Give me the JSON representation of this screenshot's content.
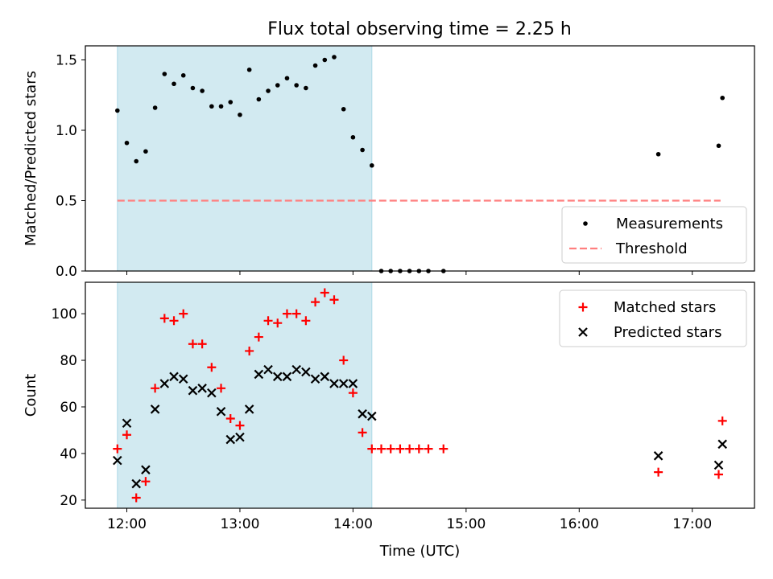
{
  "title": "Flux total observing time = 2.25 h",
  "chart_data": [
    {
      "type": "scatter",
      "name": "ratio-panel",
      "ylabel": "Matched/Predicted stars",
      "xlabel": "",
      "xlim": [
        "11:38",
        "17:33"
      ],
      "ylim": [
        0,
        1.6
      ],
      "yticks": [
        0,
        0.5,
        1.0,
        1.5
      ],
      "ytick_labels": [
        "0.0",
        "0.5",
        "1.0",
        "1.5"
      ],
      "xticks": [
        "12:00",
        "13:00",
        "14:00",
        "15:00",
        "16:00",
        "17:00"
      ],
      "shaded_span": [
        "11:55",
        "14:10"
      ],
      "shaded_color": "#add8e6",
      "threshold": {
        "name": "Threshold",
        "y": 0.5,
        "x_range": [
          "11:55",
          "17:15"
        ],
        "color": "#ff7f7f",
        "style": "dashed"
      },
      "series": [
        {
          "name": "Measurements",
          "marker": "dot",
          "color": "#000000",
          "points": [
            [
              "11:55",
              1.14
            ],
            [
              "12:00",
              0.91
            ],
            [
              "12:05",
              0.78
            ],
            [
              "12:10",
              0.85
            ],
            [
              "12:15",
              1.16
            ],
            [
              "12:20",
              1.4
            ],
            [
              "12:25",
              1.33
            ],
            [
              "12:30",
              1.39
            ],
            [
              "12:35",
              1.3
            ],
            [
              "12:40",
              1.28
            ],
            [
              "12:45",
              1.17
            ],
            [
              "12:50",
              1.17
            ],
            [
              "12:55",
              1.2
            ],
            [
              "13:00",
              1.11
            ],
            [
              "13:05",
              1.43
            ],
            [
              "13:10",
              1.22
            ],
            [
              "13:15",
              1.28
            ],
            [
              "13:20",
              1.32
            ],
            [
              "13:25",
              1.37
            ],
            [
              "13:30",
              1.32
            ],
            [
              "13:35",
              1.3
            ],
            [
              "13:40",
              1.46
            ],
            [
              "13:45",
              1.5
            ],
            [
              "13:50",
              1.52
            ],
            [
              "13:55",
              1.15
            ],
            [
              "14:00",
              0.95
            ],
            [
              "14:05",
              0.86
            ],
            [
              "14:10",
              0.75
            ],
            [
              "14:15",
              0
            ],
            [
              "14:20",
              0
            ],
            [
              "14:25",
              0
            ],
            [
              "14:30",
              0
            ],
            [
              "14:35",
              0
            ],
            [
              "14:40",
              0
            ],
            [
              "14:48",
              0
            ],
            [
              "16:42",
              0.83
            ],
            [
              "17:14",
              0.89
            ],
            [
              "17:16",
              1.23
            ]
          ]
        }
      ],
      "legend": {
        "placement": "lower-right",
        "entries": [
          "Measurements",
          "Threshold"
        ]
      }
    },
    {
      "type": "scatter",
      "name": "count-panel",
      "ylabel": "Count",
      "xlabel": "Time (UTC)",
      "xlim": [
        "11:38",
        "17:33"
      ],
      "ylim": [
        16.5,
        113.5
      ],
      "yticks": [
        20,
        40,
        60,
        80,
        100
      ],
      "ytick_labels": [
        "20",
        "40",
        "60",
        "80",
        "100"
      ],
      "xticks": [
        "12:00",
        "13:00",
        "14:00",
        "15:00",
        "16:00",
        "17:00"
      ],
      "shaded_span": [
        "11:55",
        "14:10"
      ],
      "shaded_color": "#add8e6",
      "series": [
        {
          "name": "Matched stars",
          "marker": "plus",
          "color": "#ff0000",
          "points": [
            [
              "11:55",
              42
            ],
            [
              "12:00",
              48
            ],
            [
              "12:05",
              21
            ],
            [
              "12:10",
              28
            ],
            [
              "12:15",
              68
            ],
            [
              "12:20",
              98
            ],
            [
              "12:25",
              97
            ],
            [
              "12:30",
              100
            ],
            [
              "12:35",
              87
            ],
            [
              "12:40",
              87
            ],
            [
              "12:45",
              77
            ],
            [
              "12:50",
              68
            ],
            [
              "12:55",
              55
            ],
            [
              "13:00",
              52
            ],
            [
              "13:05",
              84
            ],
            [
              "13:10",
              90
            ],
            [
              "13:15",
              97
            ],
            [
              "13:20",
              96
            ],
            [
              "13:25",
              100
            ],
            [
              "13:30",
              100
            ],
            [
              "13:35",
              97
            ],
            [
              "13:40",
              105
            ],
            [
              "13:45",
              109
            ],
            [
              "13:50",
              106
            ],
            [
              "13:55",
              80
            ],
            [
              "14:00",
              66
            ],
            [
              "14:05",
              49
            ],
            [
              "14:10",
              42
            ],
            [
              "14:15",
              42
            ],
            [
              "14:20",
              42
            ],
            [
              "14:25",
              42
            ],
            [
              "14:30",
              42
            ],
            [
              "14:35",
              42
            ],
            [
              "14:40",
              42
            ],
            [
              "14:48",
              42
            ],
            [
              "16:42",
              32
            ],
            [
              "17:14",
              31
            ],
            [
              "17:16",
              54
            ]
          ]
        },
        {
          "name": "Predicted stars",
          "marker": "x",
          "color": "#000000",
          "points": [
            [
              "11:55",
              37
            ],
            [
              "12:00",
              53
            ],
            [
              "12:05",
              27
            ],
            [
              "12:10",
              33
            ],
            [
              "12:15",
              59
            ],
            [
              "12:20",
              70
            ],
            [
              "12:25",
              73
            ],
            [
              "12:30",
              72
            ],
            [
              "12:35",
              67
            ],
            [
              "12:40",
              68
            ],
            [
              "12:45",
              66
            ],
            [
              "12:50",
              58
            ],
            [
              "12:55",
              46
            ],
            [
              "13:00",
              47
            ],
            [
              "13:05",
              59
            ],
            [
              "13:10",
              74
            ],
            [
              "13:15",
              76
            ],
            [
              "13:20",
              73
            ],
            [
              "13:25",
              73
            ],
            [
              "13:30",
              76
            ],
            [
              "13:35",
              75
            ],
            [
              "13:40",
              72
            ],
            [
              "13:45",
              73
            ],
            [
              "13:50",
              70
            ],
            [
              "13:55",
              70
            ],
            [
              "14:00",
              70
            ],
            [
              "14:05",
              57
            ],
            [
              "14:10",
              56
            ],
            [
              "16:42",
              39
            ],
            [
              "17:14",
              35
            ],
            [
              "17:16",
              44
            ]
          ]
        }
      ],
      "legend": {
        "placement": "upper-right",
        "entries": [
          "Matched stars",
          "Predicted stars"
        ]
      }
    }
  ]
}
